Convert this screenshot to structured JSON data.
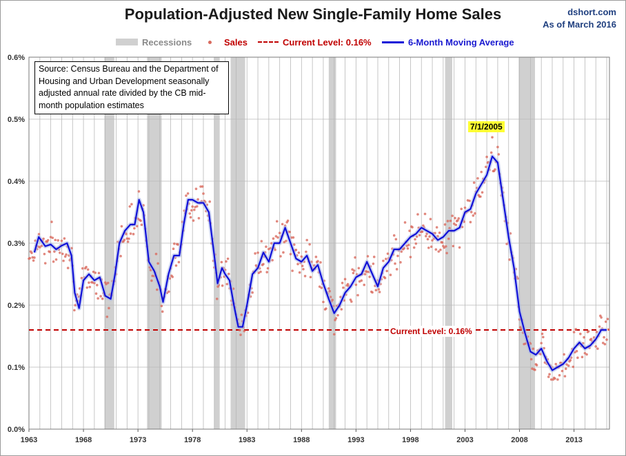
{
  "header": {
    "title": "Population-Adjusted New Single-Family Home Sales",
    "site": "dshort.com",
    "as_of": "As of March 2016"
  },
  "legend": {
    "recessions": "Recessions",
    "sales": "Sales",
    "current_level": "Current Level: 0.16%",
    "moving_average": "6-Month Moving Average"
  },
  "source_note": "Source: Census Bureau and the Department of Housing and Urban Development seasonally adjusted annual rate divided by the CB mid-month population estimates",
  "annotations": {
    "peak_label": "7/1/2005",
    "current_label": "Current Level: 0.16%"
  },
  "colors": {
    "sales_dots": "#d96a5e",
    "moving_average": "#1010d8",
    "current_level": "#c00000",
    "recession_band": "#d0d0d0",
    "gridline": "#b8b8b8",
    "peak_highlight": "#ffff33"
  },
  "chart_data": {
    "type": "line",
    "title": "Population-Adjusted New Single-Family Home Sales",
    "xlabel": "",
    "ylabel": "",
    "x_ticks": [
      "1963",
      "1968",
      "1973",
      "1978",
      "1983",
      "1988",
      "1993",
      "1998",
      "2003",
      "2008",
      "2013"
    ],
    "y_ticks": [
      "0.0%",
      "0.1%",
      "0.2%",
      "0.3%",
      "0.4%",
      "0.5%",
      "0.6%"
    ],
    "xlim": [
      1963.0,
      2016.25
    ],
    "ylim": [
      0.0,
      0.6
    ],
    "grid": {
      "horizontal": true,
      "vertical_yearly": true
    },
    "legend_position": "top",
    "recessions": [
      [
        1969.92,
        1970.83
      ],
      [
        1973.83,
        1975.17
      ],
      [
        1980.0,
        1980.5
      ],
      [
        1981.5,
        1982.83
      ],
      [
        1990.5,
        1991.17
      ],
      [
        2001.17,
        2001.83
      ],
      [
        2007.92,
        2009.42
      ]
    ],
    "current_level": 0.16,
    "peak": {
      "date": "7/1/2005",
      "x": 2005.5,
      "value": 0.44
    },
    "moving_average": {
      "name": "6-Month Moving Average",
      "x": [
        1963.5,
        1963.9,
        1964.5,
        1965.0,
        1965.5,
        1966.0,
        1966.5,
        1966.9,
        1967.2,
        1967.6,
        1968.0,
        1968.5,
        1969.0,
        1969.5,
        1970.0,
        1970.5,
        1970.9,
        1971.3,
        1971.8,
        1972.3,
        1972.7,
        1973.1,
        1973.5,
        1974.0,
        1974.5,
        1975.0,
        1975.3,
        1975.8,
        1976.3,
        1976.8,
        1977.2,
        1977.6,
        1978.0,
        1978.5,
        1979.0,
        1979.5,
        1980.0,
        1980.3,
        1980.7,
        1981.0,
        1981.4,
        1981.8,
        1982.2,
        1982.6,
        1983.0,
        1983.5,
        1984.0,
        1984.5,
        1985.0,
        1985.5,
        1986.0,
        1986.5,
        1987.0,
        1987.5,
        1988.0,
        1988.5,
        1989.0,
        1989.5,
        1990.0,
        1990.5,
        1991.0,
        1991.5,
        1992.0,
        1992.5,
        1993.0,
        1993.5,
        1994.0,
        1994.5,
        1995.0,
        1995.5,
        1996.0,
        1996.5,
        1997.0,
        1997.5,
        1998.0,
        1998.5,
        1999.0,
        1999.5,
        2000.0,
        2000.5,
        2001.0,
        2001.5,
        2002.0,
        2002.5,
        2003.0,
        2003.5,
        2004.0,
        2004.5,
        2005.0,
        2005.5,
        2006.0,
        2006.5,
        2007.0,
        2007.5,
        2008.0,
        2008.5,
        2009.0,
        2009.5,
        2010.0,
        2010.5,
        2011.0,
        2011.5,
        2012.0,
        2012.5,
        2013.0,
        2013.5,
        2014.0,
        2014.5,
        2015.0,
        2015.5,
        2016.0
      ],
      "y": [
        0.285,
        0.31,
        0.295,
        0.298,
        0.29,
        0.296,
        0.3,
        0.28,
        0.22,
        0.195,
        0.24,
        0.25,
        0.24,
        0.245,
        0.215,
        0.21,
        0.25,
        0.3,
        0.32,
        0.33,
        0.33,
        0.37,
        0.35,
        0.27,
        0.255,
        0.23,
        0.205,
        0.25,
        0.28,
        0.28,
        0.33,
        0.37,
        0.37,
        0.365,
        0.365,
        0.35,
        0.28,
        0.235,
        0.26,
        0.25,
        0.24,
        0.2,
        0.165,
        0.165,
        0.2,
        0.25,
        0.26,
        0.285,
        0.27,
        0.3,
        0.3,
        0.325,
        0.3,
        0.275,
        0.27,
        0.28,
        0.255,
        0.265,
        0.235,
        0.21,
        0.187,
        0.2,
        0.22,
        0.23,
        0.245,
        0.25,
        0.27,
        0.25,
        0.23,
        0.26,
        0.27,
        0.29,
        0.29,
        0.3,
        0.31,
        0.315,
        0.325,
        0.32,
        0.315,
        0.305,
        0.31,
        0.32,
        0.32,
        0.325,
        0.35,
        0.355,
        0.38,
        0.395,
        0.41,
        0.44,
        0.43,
        0.37,
        0.31,
        0.26,
        0.19,
        0.155,
        0.125,
        0.12,
        0.13,
        0.11,
        0.095,
        0.1,
        0.105,
        0.115,
        0.13,
        0.14,
        0.13,
        0.135,
        0.145,
        0.16,
        0.16
      ]
    },
    "sales": {
      "name": "Sales",
      "note": "monthly points scattered around the moving average"
    }
  }
}
